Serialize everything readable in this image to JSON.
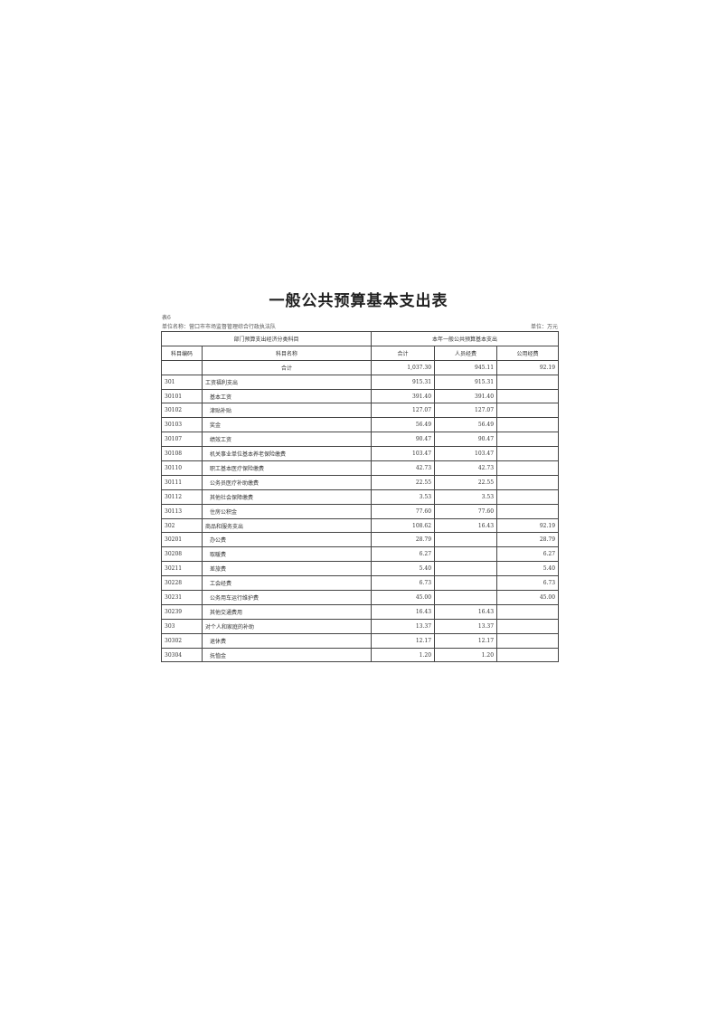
{
  "title": "一般公共预算基本支出表",
  "table_no": "表6",
  "unit_name": "单位名称：营口市市场监督管理综合行政执法队",
  "unit": "单位：万元",
  "headers": {
    "group_left": "部门预算支出经济分类科目",
    "group_right": "本年一般公共预算基本支出",
    "code": "科目编码",
    "name": "科目名称",
    "total": "合计",
    "personnel": "人员经费",
    "public": "公用经费"
  },
  "total_row": {
    "name": "合计",
    "total": "1,037.30",
    "personnel": "945.11",
    "public": "92.19"
  },
  "rows": [
    {
      "code": "301",
      "name": "工资福利支出",
      "total": "915.31",
      "personnel": "915.31",
      "public": "",
      "level": 1
    },
    {
      "code": "30101",
      "name": "基本工资",
      "total": "391.40",
      "personnel": "391.40",
      "public": "",
      "level": 2
    },
    {
      "code": "30102",
      "name": "津贴补贴",
      "total": "127.07",
      "personnel": "127.07",
      "public": "",
      "level": 2
    },
    {
      "code": "30103",
      "name": "奖金",
      "total": "56.49",
      "personnel": "56.49",
      "public": "",
      "level": 2
    },
    {
      "code": "30107",
      "name": "绩效工资",
      "total": "90.47",
      "personnel": "90.47",
      "public": "",
      "level": 2
    },
    {
      "code": "30108",
      "name": "机关事业单位基本养老保险缴费",
      "total": "103.47",
      "personnel": "103.47",
      "public": "",
      "level": 2
    },
    {
      "code": "30110",
      "name": "职工基本医疗保险缴费",
      "total": "42.73",
      "personnel": "42.73",
      "public": "",
      "level": 2
    },
    {
      "code": "30111",
      "name": "公务员医疗补助缴费",
      "total": "22.55",
      "personnel": "22.55",
      "public": "",
      "level": 2
    },
    {
      "code": "30112",
      "name": "其他社会保障缴费",
      "total": "3.53",
      "personnel": "3.53",
      "public": "",
      "level": 2
    },
    {
      "code": "30113",
      "name": "住房公积金",
      "total": "77.60",
      "personnel": "77.60",
      "public": "",
      "level": 2
    },
    {
      "code": "302",
      "name": "商品和服务支出",
      "total": "108.62",
      "personnel": "16.43",
      "public": "92.19",
      "level": 1
    },
    {
      "code": "30201",
      "name": "办公费",
      "total": "28.79",
      "personnel": "",
      "public": "28.79",
      "level": 2
    },
    {
      "code": "30208",
      "name": "取暖费",
      "total": "6.27",
      "personnel": "",
      "public": "6.27",
      "level": 2
    },
    {
      "code": "30211",
      "name": "差旅费",
      "total": "5.40",
      "personnel": "",
      "public": "5.40",
      "level": 2
    },
    {
      "code": "30228",
      "name": "工会经费",
      "total": "6.73",
      "personnel": "",
      "public": "6.73",
      "level": 2
    },
    {
      "code": "30231",
      "name": "公务用车运行维护费",
      "total": "45.00",
      "personnel": "",
      "public": "45.00",
      "level": 2
    },
    {
      "code": "30239",
      "name": "其他交通费用",
      "total": "16.43",
      "personnel": "16.43",
      "public": "",
      "level": 2
    },
    {
      "code": "303",
      "name": "对个人和家庭的补助",
      "total": "13.37",
      "personnel": "13.37",
      "public": "",
      "level": 1
    },
    {
      "code": "30302",
      "name": "退休费",
      "total": "12.17",
      "personnel": "12.17",
      "public": "",
      "level": 2
    },
    {
      "code": "30304",
      "name": "抚恤金",
      "total": "1.20",
      "personnel": "1.20",
      "public": "",
      "level": 2
    }
  ]
}
